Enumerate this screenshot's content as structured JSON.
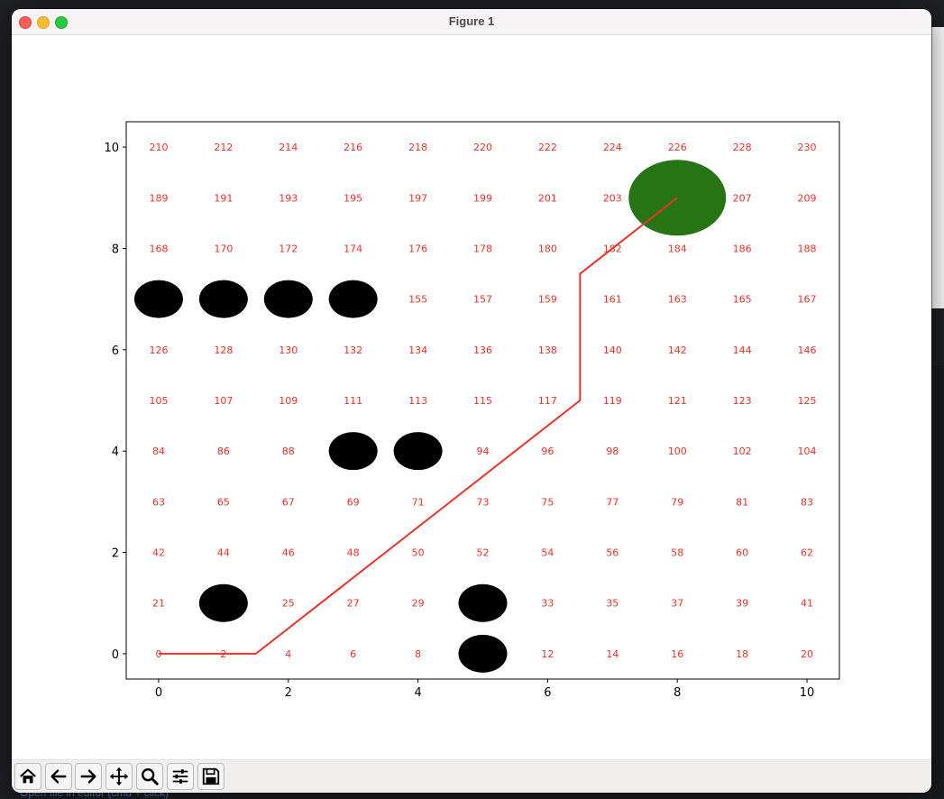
{
  "window": {
    "title": "Figure 1"
  },
  "background": {
    "bottom_link": "Open file in editor (cmd + click)"
  },
  "toolbar": {
    "buttons": [
      {
        "name": "home-button",
        "icon": "home-icon"
      },
      {
        "name": "back-button",
        "icon": "arrow-left-icon"
      },
      {
        "name": "forward-button",
        "icon": "arrow-right-icon"
      },
      {
        "name": "pan-button",
        "icon": "move-icon"
      },
      {
        "name": "zoom-button",
        "icon": "magnifier-icon"
      },
      {
        "name": "configure-subplots-button",
        "icon": "sliders-icon"
      },
      {
        "name": "save-button",
        "icon": "floppy-disk-icon"
      }
    ]
  },
  "chart_data": {
    "type": "scatter",
    "title": "",
    "xlabel": "",
    "ylabel": "",
    "xlim": [
      -0.5,
      10.5
    ],
    "ylim": [
      -0.5,
      10.5
    ],
    "xticks": [
      0,
      2,
      4,
      6,
      8,
      10
    ],
    "yticks": [
      0,
      2,
      4,
      6,
      8,
      10
    ],
    "grid": false,
    "legend": false,
    "grid_labels": {
      "x_values": [
        0,
        1,
        2,
        3,
        4,
        5,
        6,
        7,
        8,
        9,
        10
      ],
      "y_values": [
        0,
        1,
        2,
        3,
        4,
        5,
        6,
        7,
        8,
        9,
        10
      ],
      "label_rule": "index = 21*y + 2*x",
      "color": "#e8342a"
    },
    "obstacles": {
      "color": "#000000",
      "points": [
        [
          0,
          7
        ],
        [
          1,
          7
        ],
        [
          2,
          7
        ],
        [
          3,
          7
        ],
        [
          3,
          4
        ],
        [
          4,
          4
        ],
        [
          1,
          1
        ],
        [
          5,
          1
        ],
        [
          5,
          0
        ]
      ]
    },
    "goal": {
      "color": "#267414",
      "point": [
        8,
        9
      ]
    },
    "path": {
      "color": "#e8342a",
      "points": [
        [
          0,
          0
        ],
        [
          1.5,
          0
        ],
        [
          6.5,
          5
        ],
        [
          6.5,
          7.5
        ],
        [
          8,
          9
        ]
      ]
    }
  }
}
